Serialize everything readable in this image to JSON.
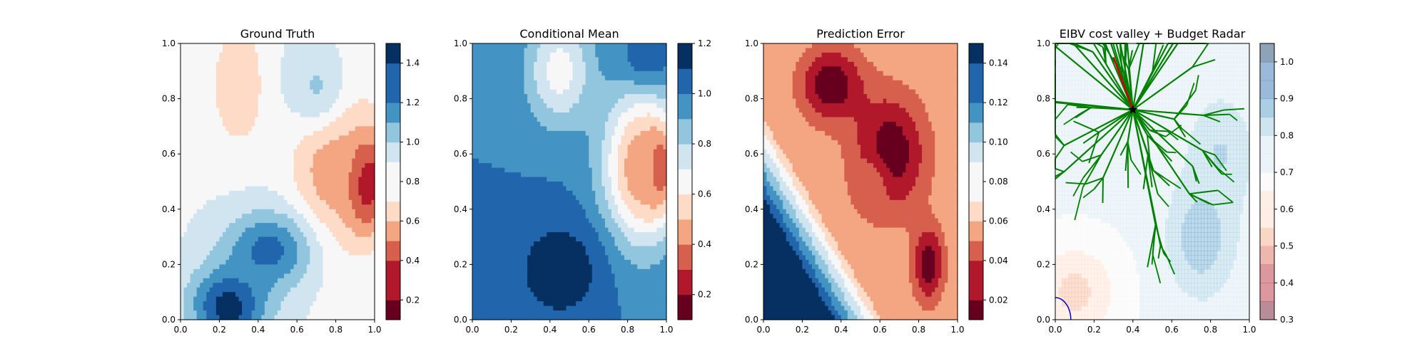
{
  "chart_data": [
    {
      "type": "heatmap",
      "title": "Ground Truth",
      "xlabel": "",
      "ylabel": "",
      "xlim": [
        0,
        1
      ],
      "ylim": [
        0,
        1
      ],
      "xticks": [
        "0.0",
        "0.2",
        "0.4",
        "0.6",
        "0.8",
        "1.0"
      ],
      "yticks": [
        "0.0",
        "0.2",
        "0.4",
        "0.6",
        "0.8",
        "1.0"
      ],
      "colormap": "RdBu",
      "colorbar": {
        "levels": [
          0.1,
          0.2,
          0.3,
          0.4,
          0.5,
          0.6,
          0.7,
          0.8,
          0.9,
          1.0,
          1.1,
          1.2,
          1.3,
          1.4,
          1.5
        ],
        "ticks": [
          0.2,
          0.4,
          0.6,
          0.8,
          1.0,
          1.2,
          1.4
        ],
        "tick_labels": [
          "0.2",
          "0.4",
          "0.6",
          "0.8",
          "1.0",
          "1.2",
          "1.4"
        ]
      },
      "field_features": [
        {
          "x": 0.95,
          "y": 0.5,
          "value": 0.12,
          "sx": 0.08,
          "sy": 0.13
        },
        {
          "x": 0.78,
          "y": 0.58,
          "value": 0.5,
          "sx": 0.14,
          "sy": 0.22
        },
        {
          "x": 0.3,
          "y": 0.85,
          "value": 0.62,
          "sx": 0.1,
          "sy": 0.16
        },
        {
          "x": 0.25,
          "y": 0.05,
          "value": 1.45,
          "sx": 0.14,
          "sy": 0.1
        },
        {
          "x": 0.45,
          "y": 0.25,
          "value": 1.3,
          "sx": 0.16,
          "sy": 0.1
        },
        {
          "x": 0.7,
          "y": 0.85,
          "value": 1.0,
          "sx": 0.12,
          "sy": 0.12
        }
      ],
      "field_base": 0.85
    },
    {
      "type": "heatmap",
      "title": "Conditional Mean",
      "xlabel": "",
      "ylabel": "",
      "xlim": [
        0,
        1
      ],
      "ylim": [
        0,
        1
      ],
      "xticks": [
        "0.0",
        "0.2",
        "0.4",
        "0.6",
        "0.8",
        "1.0"
      ],
      "yticks": [
        "0.0",
        "0.2",
        "0.4",
        "0.6",
        "0.8",
        "1.0"
      ],
      "colormap": "RdBu",
      "colorbar": {
        "levels": [
          0.1,
          0.2,
          0.3,
          0.4,
          0.5,
          0.6,
          0.7,
          0.8,
          0.9,
          1.0,
          1.1,
          1.2
        ],
        "ticks": [
          0.2,
          0.4,
          0.6,
          0.8,
          1.0,
          1.2
        ],
        "tick_labels": [
          "0.2",
          "0.4",
          "0.6",
          "0.8",
          "1.0",
          "1.2"
        ]
      },
      "field_features": [
        {
          "x": 0.95,
          "y": 0.55,
          "value": 0.12,
          "sx": 0.08,
          "sy": 0.12
        },
        {
          "x": 0.85,
          "y": 0.55,
          "value": 0.45,
          "sx": 0.13,
          "sy": 0.2
        },
        {
          "x": 0.45,
          "y": 0.9,
          "value": 0.65,
          "sx": 0.12,
          "sy": 0.14
        },
        {
          "x": 0.45,
          "y": 0.18,
          "value": 1.18,
          "sx": 0.16,
          "sy": 0.13
        },
        {
          "x": 0.9,
          "y": 0.95,
          "value": 1.05,
          "sx": 0.1,
          "sy": 0.07
        }
      ],
      "field_base": 1.0
    },
    {
      "type": "heatmap",
      "title": "Prediction Error",
      "xlabel": "",
      "ylabel": "",
      "xlim": [
        0,
        1
      ],
      "ylim": [
        0,
        1
      ],
      "xticks": [
        "0.0",
        "0.2",
        "0.4",
        "0.6",
        "0.8",
        "1.0"
      ],
      "yticks": [
        "0.0",
        "0.2",
        "0.4",
        "0.6",
        "0.8",
        "1.0"
      ],
      "colormap": "RdBu",
      "colorbar": {
        "levels": [
          0.01,
          0.02,
          0.03,
          0.04,
          0.05,
          0.06,
          0.07,
          0.08,
          0.09,
          0.1,
          0.11,
          0.12,
          0.13,
          0.14,
          0.15
        ],
        "ticks": [
          0.02,
          0.04,
          0.06,
          0.08,
          0.1,
          0.12,
          0.14
        ],
        "tick_labels": [
          "0.02",
          "0.04",
          "0.06",
          "0.08",
          "0.10",
          "0.12",
          "0.14"
        ]
      },
      "field_features": [
        {
          "x": 0.35,
          "y": 0.85,
          "value": 0.012,
          "sx": 0.12,
          "sy": 0.1
        },
        {
          "x": 0.65,
          "y": 0.6,
          "value": 0.012,
          "sx": 0.14,
          "sy": 0.16
        },
        {
          "x": 0.85,
          "y": 0.2,
          "value": 0.014,
          "sx": 0.06,
          "sy": 0.1
        },
        {
          "x": 0.55,
          "y": 0.48,
          "value": 0.045,
          "sx": 0.07,
          "sy": 0.08
        }
      ],
      "field_base": 0.06
    },
    {
      "type": "heatmap",
      "title": "EIBV cost valley + Budget Radar",
      "xlabel": "",
      "ylabel": "",
      "xlim": [
        0,
        1
      ],
      "ylim": [
        0,
        1
      ],
      "xticks": [
        "0.0",
        "0.2",
        "0.4",
        "0.6",
        "0.8",
        "1.0"
      ],
      "yticks": [
        "0.0",
        "0.2",
        "0.4",
        "0.6",
        "0.8",
        "1.0"
      ],
      "colormap": "RdBu",
      "colorbar": {
        "levels": [
          0.3,
          0.35,
          0.4,
          0.45,
          0.5,
          0.55,
          0.6,
          0.65,
          0.7,
          0.75,
          0.8,
          0.85,
          0.9,
          0.95,
          1.0,
          1.05
        ],
        "ticks": [
          0.3,
          0.4,
          0.5,
          0.6,
          0.7,
          0.8,
          0.9,
          1.0
        ],
        "tick_labels": [
          "0.3",
          "0.4",
          "0.5",
          "0.6",
          "0.7",
          "0.8",
          "0.9",
          "1.0"
        ]
      },
      "overlay_alpha": 0.35,
      "field_features": [
        {
          "x": 0.75,
          "y": 0.3,
          "value": 0.9,
          "sx": 0.12,
          "sy": 0.15
        },
        {
          "x": 0.85,
          "y": 0.6,
          "value": 0.85,
          "sx": 0.12,
          "sy": 0.15
        },
        {
          "x": 0.1,
          "y": 0.1,
          "value": 0.55,
          "sx": 0.15,
          "sy": 0.12
        }
      ],
      "field_base": 0.72,
      "current_location": {
        "x": 0.4,
        "y": 0.76
      },
      "next_waypoint_path": [
        [
          0.4,
          0.76
        ],
        [
          0.3,
          0.95
        ]
      ],
      "budget_arc": {
        "center": [
          0.0,
          0.0
        ],
        "radius": 0.08
      },
      "tree_color": "#008000",
      "path_color": "#cc0000"
    }
  ]
}
